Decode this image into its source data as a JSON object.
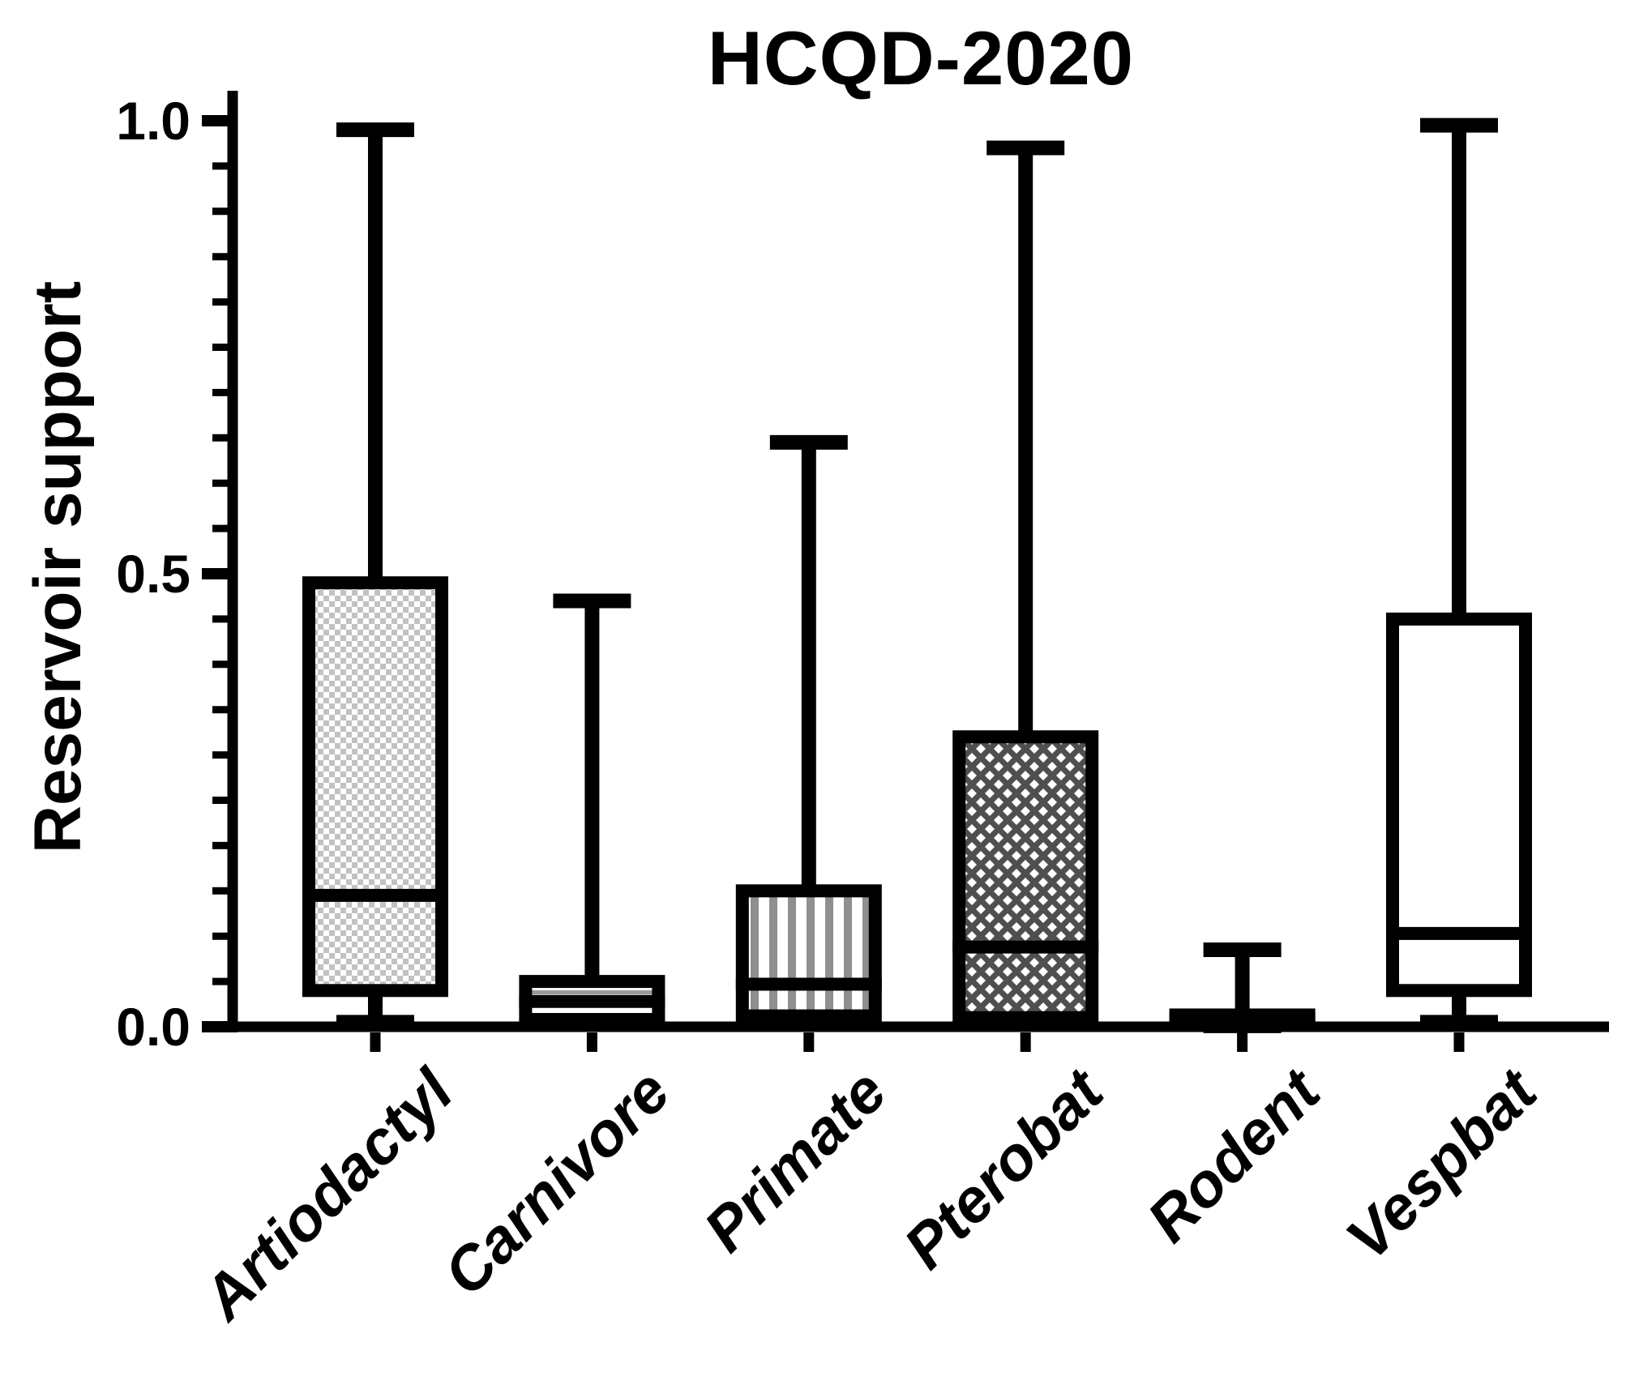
{
  "title": "HCQD-2020",
  "y_axis": {
    "label": "Reservoir support",
    "tick_labels": [
      "1.0",
      "0.5",
      "0.0"
    ],
    "tick_values": [
      1.0,
      0.5,
      0.0
    ],
    "minor_tick_step": 0.05
  },
  "colors": {
    "foreground": "#000000",
    "background": "#ffffff",
    "pattern_light_gray": "#c2c2c2",
    "pattern_mid_gray": "#8f8f8f",
    "pattern_dark_gray": "#4f4f4f"
  },
  "chart_data": {
    "type": "boxplot",
    "title": "HCQD-2020",
    "xlabel": "",
    "ylabel": "Reservoir support",
    "ylim": [
      0.0,
      1.0
    ],
    "ytick_values": [
      0.0,
      0.5,
      1.0
    ],
    "minor_tick_step": 0.05,
    "grid": false,
    "legend": "none",
    "categories": [
      "Artiodactyl",
      "Carnivore",
      "Primate",
      "Pterobat",
      "Rodent",
      "Vespbat"
    ],
    "series": [
      {
        "name": "Artiodactyl",
        "whisker_low": 0.005,
        "q1": 0.04,
        "median": 0.145,
        "q3": 0.49,
        "whisker_high": 0.99,
        "pattern": "checkerboard"
      },
      {
        "name": "Carnivore",
        "whisker_low": 0.005,
        "q1": 0.008,
        "median": 0.028,
        "q3": 0.05,
        "whisker_high": 0.47,
        "pattern": "horizontal-lines"
      },
      {
        "name": "Primate",
        "whisker_low": 0.005,
        "q1": 0.012,
        "median": 0.047,
        "q3": 0.15,
        "whisker_high": 0.645,
        "pattern": "vertical-lines"
      },
      {
        "name": "Pterobat",
        "whisker_low": 0.005,
        "q1": 0.01,
        "median": 0.088,
        "q3": 0.32,
        "whisker_high": 0.97,
        "pattern": "diamond"
      },
      {
        "name": "Rodent",
        "whisker_low": 0.001,
        "q1": 0.003,
        "median": 0.008,
        "q3": 0.013,
        "whisker_high": 0.085,
        "pattern": "solid"
      },
      {
        "name": "Vespbat",
        "whisker_low": 0.005,
        "q1": 0.04,
        "median": 0.103,
        "q3": 0.45,
        "whisker_high": 0.995,
        "pattern": "none"
      }
    ]
  }
}
